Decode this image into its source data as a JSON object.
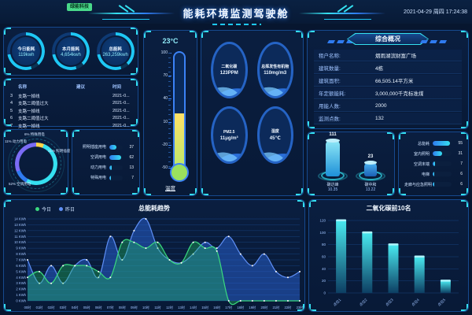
{
  "header": {
    "badge": "绿能科技",
    "title": "能耗环境监测驾驶舱",
    "datetime": "2021-04-29 周四 17:24:38"
  },
  "colors": {
    "accent_cyan": "#35e0f0",
    "accent_blue": "#2f7bf0",
    "accent_green": "#3bd97f",
    "accent_yellow": "#ffd447",
    "accent_purple": "#7b6cf6",
    "panel_border": "#16498e",
    "background": "#07162f"
  },
  "stats": {
    "items": [
      {
        "label": "今日能耗",
        "value": "119kwh"
      },
      {
        "label": "本月能耗",
        "value": "4,654kwh"
      },
      {
        "label": "总能耗",
        "value": "263,259kwh"
      }
    ]
  },
  "alarms": {
    "columns": [
      "名称",
      "建议",
      "时间"
    ],
    "rows": [
      {
        "idx": "3",
        "name": "支路一掉线",
        "advice": "",
        "time": "2021-0..."
      },
      {
        "idx": "4",
        "name": "支路二阈值过大",
        "advice": "",
        "time": "2021-0..."
      },
      {
        "idx": "5",
        "name": "支路一掉线",
        "advice": "",
        "time": "2021-0..."
      },
      {
        "idx": "6",
        "name": "支路二阈值过大",
        "advice": "",
        "time": "2021-0..."
      },
      {
        "idx": "7",
        "name": "支路一掉线",
        "advice": "",
        "time": "2021-0..."
      }
    ]
  },
  "energy_share": {
    "slices": [
      {
        "label": "特殊用电",
        "pct": "6%",
        "color": "#ffd447"
      },
      {
        "label": "空调用电",
        "pct": "52%",
        "color": "#35e0f0"
      },
      {
        "label": "动力用电",
        "pct": "11%",
        "color": "#2f7bf0"
      },
      {
        "label": "照明插座",
        "pct": "31%",
        "color": "#7b6cf6"
      }
    ]
  },
  "usage_bars": {
    "max": 70,
    "rows": [
      {
        "label": "照明插座用电",
        "value": 37
      },
      {
        "label": "空调用电",
        "value": 62
      },
      {
        "label": "动力用电",
        "value": 13
      },
      {
        "label": "特殊用电",
        "value": 7
      }
    ]
  },
  "thermometer": {
    "value": "23°C",
    "ticks": [
      "100",
      "70",
      "40",
      "10",
      "-20",
      "-50"
    ],
    "label": "温度"
  },
  "gauges": [
    {
      "label": "二氧化碳",
      "value": "123PPM"
    },
    {
      "label": "总挥发性有机物",
      "value": "110mg/m3"
    },
    {
      "label": "PM2.5",
      "value": "11μg/m³"
    },
    {
      "label": "湿度",
      "value": "45℃"
    }
  ],
  "overview": {
    "title": "综合概况",
    "rows": [
      {
        "label": "租户名称:",
        "value": "烟雨湖滨财富广场"
      },
      {
        "label": "建筑数量:",
        "value": "4栋"
      },
      {
        "label": "建筑面积:",
        "value": "66,505.14平方米"
      },
      {
        "label": "年定额能耗:",
        "value": "3,000,000千克标准煤"
      },
      {
        "label": "用能人数:",
        "value": "2000"
      },
      {
        "label": "监测点数:",
        "value": "132"
      }
    ]
  },
  "carbon": {
    "items": [
      {
        "value": "111",
        "name": "碳达峰",
        "sub": "10.35"
      },
      {
        "value": "23",
        "name": "碳中和",
        "sub": "13.22"
      }
    ]
  },
  "subentry_bars": {
    "max": 60,
    "rows": [
      {
        "label": "总能耗",
        "value": 55
      },
      {
        "label": "室内照明",
        "value": 31
      },
      {
        "label": "空调末端",
        "value": 7
      },
      {
        "label": "电梯",
        "value": 6
      },
      {
        "label": "走廊与应急照明",
        "value": 6
      }
    ]
  },
  "chart_data": [
    {
      "type": "area",
      "title": "总能耗趋势",
      "legend_position": "top-left",
      "x": [
        "00时",
        "01时",
        "02时",
        "03时",
        "04时",
        "05时",
        "06时",
        "07时",
        "08时",
        "09时",
        "10时",
        "11时",
        "12时",
        "13时",
        "14时",
        "15时",
        "16时",
        "17时",
        "18时",
        "19时",
        "20时",
        "21时",
        "22时",
        "23时"
      ],
      "ylim": [
        0,
        14
      ],
      "yticks": [
        "0 KWh",
        "1 KWh",
        "2 KWh",
        "3 KWh",
        "4 KWh",
        "5 KWh",
        "6 KWh",
        "7 KWh",
        "8 KWh",
        "9 KWh",
        "10 KWh",
        "11 KWh",
        "12 KWh",
        "13 KWh",
        "14 KWh"
      ],
      "grid": true,
      "series": [
        {
          "name": "昨日",
          "color": "#5f8ff5",
          "fill": "rgba(47,109,232,0.45)",
          "values": [
            7,
            3,
            6,
            3,
            6,
            7,
            4,
            11,
            7,
            12,
            14,
            9,
            7,
            6.5,
            8,
            10,
            9,
            11,
            8,
            6,
            8,
            5,
            4,
            5
          ]
        },
        {
          "name": "今日",
          "color": "#3bd97f",
          "fill": "rgba(34,197,94,0.35)",
          "values": [
            4,
            5,
            3,
            6,
            6,
            6,
            5,
            4,
            10,
            10,
            9,
            10,
            7,
            6.5,
            10,
            9,
            8.5,
            0,
            0,
            0,
            0,
            0,
            0,
            0
          ]
        }
      ]
    },
    {
      "type": "bar",
      "title": "二氧化碳前10名",
      "categories": [
        "点位1",
        "点位2",
        "点位3",
        "点位4",
        "点位5"
      ],
      "values": [
        120,
        100,
        80,
        60,
        20
      ],
      "ylim": [
        0,
        120
      ],
      "yticks": [
        0,
        20,
        40,
        60,
        80,
        100,
        120
      ],
      "grid": true,
      "bar_color_top": "#49e9f0",
      "bar_color_bottom": "#0d3f63"
    }
  ]
}
